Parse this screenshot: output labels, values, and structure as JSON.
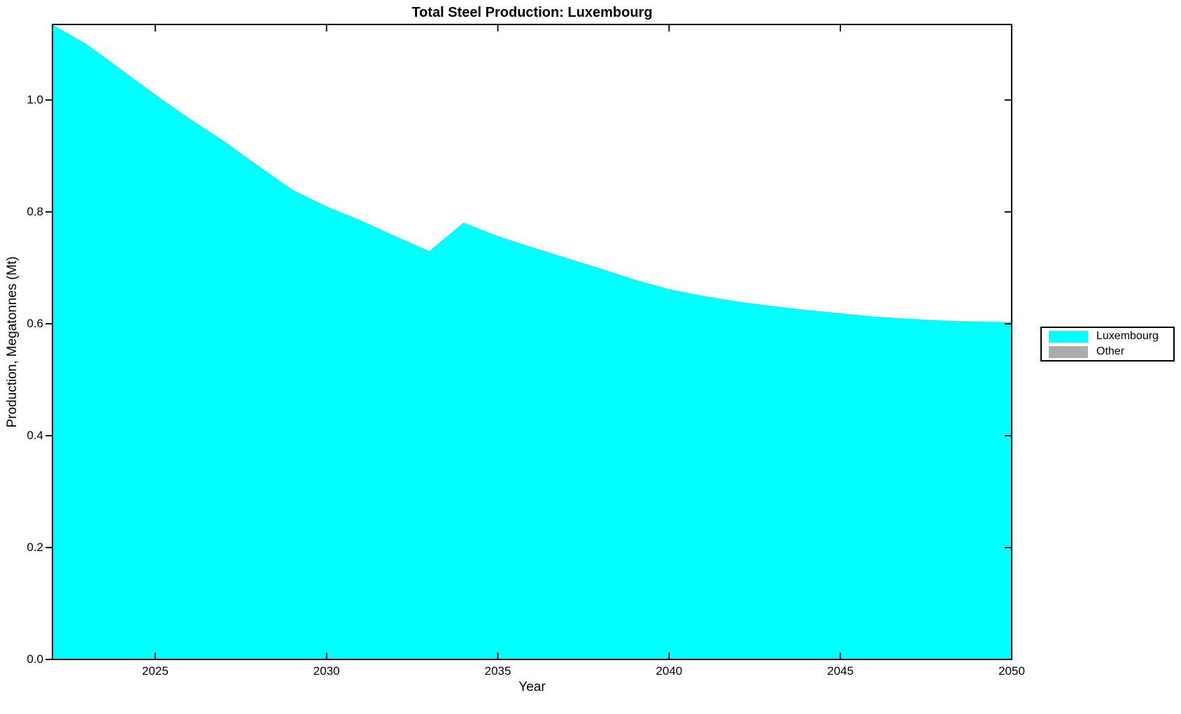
{
  "figure": {
    "title": "Total Steel Production: Luxembourg",
    "xlabel": "Year",
    "ylabel": "Production, Megatonnes (Mt)"
  },
  "legend": {
    "items": [
      {
        "label": "Luxembourg",
        "color": "#00FFFF"
      },
      {
        "label": "Other",
        "color": "#ABABAB"
      }
    ]
  },
  "chart_data": {
    "type": "area",
    "stacked": true,
    "title": "Total Steel Production: Luxembourg",
    "xlabel": "Year",
    "ylabel": "Production, Megatonnes (Mt)",
    "x": [
      2022,
      2023,
      2024,
      2025,
      2026,
      2027,
      2028,
      2029,
      2030,
      2031,
      2032,
      2033,
      2034,
      2035,
      2036,
      2037,
      2038,
      2039,
      2040,
      2041,
      2042,
      2043,
      2044,
      2045,
      2046,
      2047,
      2048,
      2049,
      2050
    ],
    "series": [
      {
        "name": "Luxembourg",
        "color": "#00FFFF",
        "values": [
          1.135,
          1.1,
          1.055,
          1.01,
          0.967,
          0.927,
          0.883,
          0.84,
          0.81,
          0.785,
          0.757,
          0.73,
          0.781,
          0.757,
          0.737,
          0.718,
          0.699,
          0.679,
          0.662,
          0.65,
          0.64,
          0.632,
          0.625,
          0.619,
          0.613,
          0.609,
          0.606,
          0.604,
          0.603
        ]
      },
      {
        "name": "Other",
        "color": "#ABABAB",
        "values": [
          0,
          0,
          0,
          0,
          0,
          0,
          0,
          0,
          0,
          0,
          0,
          0,
          0,
          0,
          0,
          0,
          0,
          0,
          0,
          0,
          0,
          0,
          0,
          0,
          0,
          0,
          0,
          0,
          0
        ]
      }
    ],
    "xlim": [
      2022,
      2050
    ],
    "ylim": [
      0,
      1.135
    ],
    "x_ticks": [
      2025,
      2030,
      2035,
      2040,
      2045,
      2050
    ],
    "x_tick_labels": [
      "2025",
      "2030",
      "2035",
      "2040",
      "2045",
      "2050"
    ],
    "y_ticks": [
      0.0,
      0.2,
      0.4,
      0.6,
      0.8,
      1.0
    ],
    "y_tick_labels": [
      "0.0",
      "0.2",
      "0.4",
      "0.6",
      "0.8",
      "1.0"
    ],
    "grid": false,
    "legend_position": "outside-right",
    "axis_color": "#000000",
    "background_color": "#FFFFFF"
  }
}
